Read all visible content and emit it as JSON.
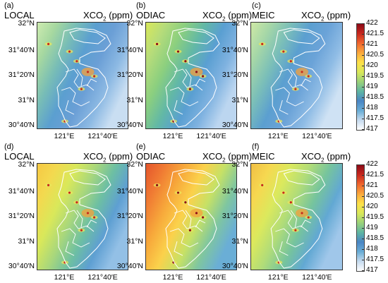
{
  "figure": {
    "top_row": {
      "panels": [
        {
          "letter": "(a)",
          "inventory": "LOCAL"
        },
        {
          "letter": "(b)",
          "inventory": "ODIAC"
        },
        {
          "letter": "(c)",
          "inventory": "MEIC"
        }
      ]
    },
    "bottom_row": {
      "panels": [
        {
          "letter": "(d)",
          "inventory": "LOCAL"
        },
        {
          "letter": "(e)",
          "inventory": "ODIAC"
        },
        {
          "letter": "(f)",
          "inventory": "MEIC"
        }
      ]
    },
    "variable_prefix": "XCO",
    "variable_sub": "2",
    "variable_unit": "(ppm)",
    "lat_labels": [
      "32°N",
      "31°40′N",
      "31°20′N",
      "31°N",
      "30°40′N"
    ],
    "lon_labels": [
      "121°E",
      "121°40′E"
    ],
    "colorbar": {
      "ticks": [
        "422",
        "421.5",
        "421",
        "420.5",
        "420",
        "419.5",
        "419",
        "418.5",
        "418",
        "417.5",
        "417"
      ],
      "min": 417,
      "max": 422,
      "colors": [
        "#ffffff",
        "#c6dbef",
        "#6aaed6",
        "#4a86c5",
        "#5fb6a3",
        "#9bd27a",
        "#d9e85a",
        "#fde049",
        "#fba93c",
        "#f0662e",
        "#c8281e",
        "#8b0a17"
      ]
    }
  }
}
